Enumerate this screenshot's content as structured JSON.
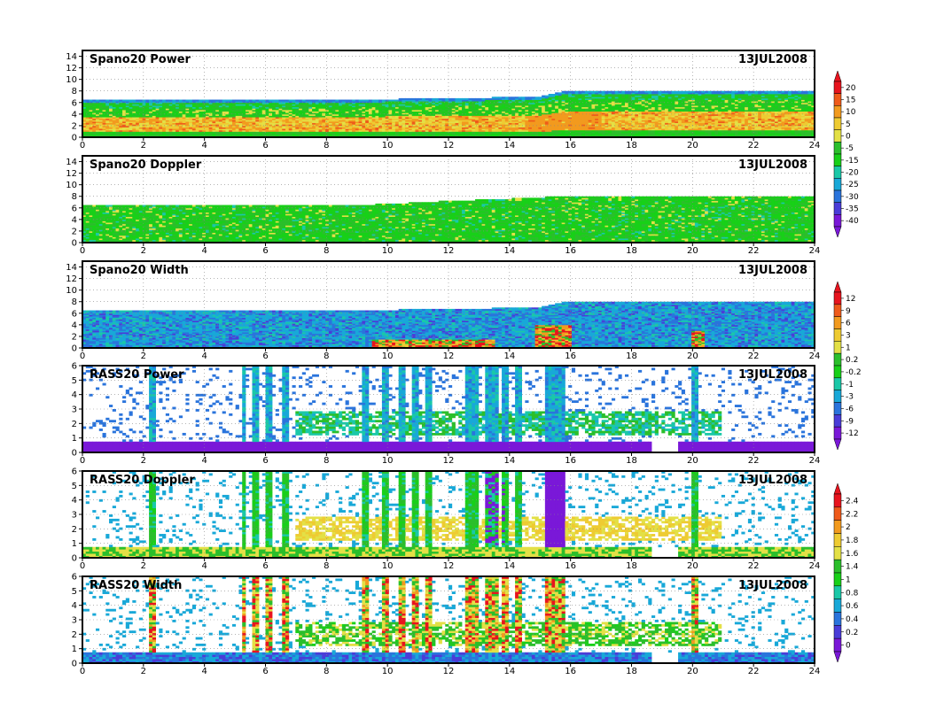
{
  "chart_data": [
    {
      "type": "heatmap",
      "title": "Spano20 Power",
      "date_label": "13JUL2008",
      "x_ticks": [
        "0",
        "2",
        "4",
        "6",
        "8",
        "10",
        "12",
        "14",
        "16",
        "18",
        "20",
        "22",
        "24"
      ],
      "y_ticks": [
        "0",
        "2",
        "4",
        "6",
        "8",
        "10",
        "12",
        "14"
      ],
      "xlim": [
        0,
        24
      ],
      "ylim": [
        0,
        15
      ],
      "height_profile": [
        [
          0,
          6.4
        ],
        [
          7.5,
          6.4
        ],
        [
          15,
          7.0
        ],
        [
          15.8,
          8.0
        ],
        [
          24,
          8.0
        ]
      ],
      "colorbar": {
        "labels": [
          "20",
          "15",
          "10",
          "5",
          "0",
          "-5",
          "-15",
          "-20",
          "-25",
          "-30",
          "-35",
          "-40"
        ],
        "colors": [
          "#e8141e",
          "#ef5a1a",
          "#f29a1e",
          "#eecb32",
          "#e3e046",
          "#2bbf2b",
          "#18d018",
          "#1ac8a8",
          "#18a8d8",
          "#2a74dc",
          "#4a3cd8",
          "#7a18d8"
        ]
      }
    },
    {
      "type": "heatmap",
      "title": "Spano20 Doppler",
      "date_label": "13JUL2008",
      "x_ticks": [
        "0",
        "2",
        "4",
        "6",
        "8",
        "10",
        "12",
        "14",
        "16",
        "18",
        "20",
        "22",
        "24"
      ],
      "y_ticks": [
        "0",
        "2",
        "4",
        "6",
        "8",
        "10",
        "12",
        "14"
      ],
      "xlim": [
        0,
        24
      ],
      "ylim": [
        0,
        15
      ],
      "height_profile": [
        [
          0,
          6.4
        ],
        [
          9.5,
          6.6
        ],
        [
          12,
          7.2
        ],
        [
          15.8,
          8.0
        ],
        [
          24,
          8.0
        ]
      ]
    },
    {
      "type": "heatmap",
      "title": "Spano20 Width",
      "date_label": "13JUL2008",
      "x_ticks": [
        "0",
        "2",
        "4",
        "6",
        "8",
        "10",
        "12",
        "14",
        "16",
        "18",
        "20",
        "22",
        "24"
      ],
      "y_ticks": [
        "0",
        "2",
        "4",
        "6",
        "8",
        "10",
        "12",
        "14"
      ],
      "xlim": [
        0,
        24
      ],
      "ylim": [
        0,
        15
      ],
      "height_profile": [
        [
          0,
          6.4
        ],
        [
          7.5,
          6.4
        ],
        [
          15,
          7.0
        ],
        [
          15.8,
          8.0
        ],
        [
          24,
          8.0
        ]
      ],
      "colorbar": {
        "labels": [
          "12",
          "9",
          "6",
          "3",
          "1",
          "0.2",
          "-0.2",
          "-1",
          "-3",
          "-6",
          "-9",
          "-12"
        ],
        "colors": [
          "#e8141e",
          "#ef5a1a",
          "#f29a1e",
          "#eecb32",
          "#e3e046",
          "#2bbf2b",
          "#18d018",
          "#1ac8a8",
          "#18a8d8",
          "#2a74dc",
          "#4a3cd8",
          "#7a18d8"
        ]
      }
    },
    {
      "type": "heatmap",
      "title": "RASS20 Power",
      "date_label": "13JUL2008",
      "x_ticks": [
        "0",
        "2",
        "4",
        "6",
        "8",
        "10",
        "12",
        "14",
        "16",
        "18",
        "20",
        "22",
        "24"
      ],
      "y_ticks": [
        "0",
        "1",
        "2",
        "3",
        "4",
        "5",
        "6"
      ],
      "xlim": [
        0,
        24
      ],
      "ylim": [
        0,
        6
      ]
    },
    {
      "type": "heatmap",
      "title": "RASS20 Doppler",
      "date_label": "13JUL2008",
      "x_ticks": [
        "0",
        "2",
        "4",
        "6",
        "8",
        "10",
        "12",
        "14",
        "16",
        "18",
        "20",
        "22",
        "24"
      ],
      "y_ticks": [
        "0",
        "1",
        "2",
        "3",
        "4",
        "5",
        "6"
      ],
      "xlim": [
        0,
        24
      ],
      "ylim": [
        0,
        6
      ],
      "colorbar": {
        "labels": [
          "2.4",
          "2.2",
          "2",
          "1.8",
          "1.6",
          "1.4",
          "1",
          "0.8",
          "0.6",
          "0.4",
          "0.2",
          "0"
        ],
        "colors": [
          "#e8141e",
          "#ef5a1a",
          "#f29a1e",
          "#eecb32",
          "#e3e046",
          "#2bbf2b",
          "#18d018",
          "#1ac8a8",
          "#18a8d8",
          "#2a74dc",
          "#4a3cd8",
          "#7a18d8"
        ]
      }
    },
    {
      "type": "heatmap",
      "title": "RASS20 Width",
      "date_label": "13JUL2008",
      "x_ticks": [
        "0",
        "2",
        "4",
        "6",
        "8",
        "10",
        "12",
        "14",
        "16",
        "18",
        "20",
        "22",
        "24"
      ],
      "y_ticks": [
        "0",
        "1",
        "2",
        "3",
        "4",
        "5",
        "6"
      ],
      "xlim": [
        0,
        24
      ],
      "ylim": [
        0,
        6
      ]
    }
  ]
}
